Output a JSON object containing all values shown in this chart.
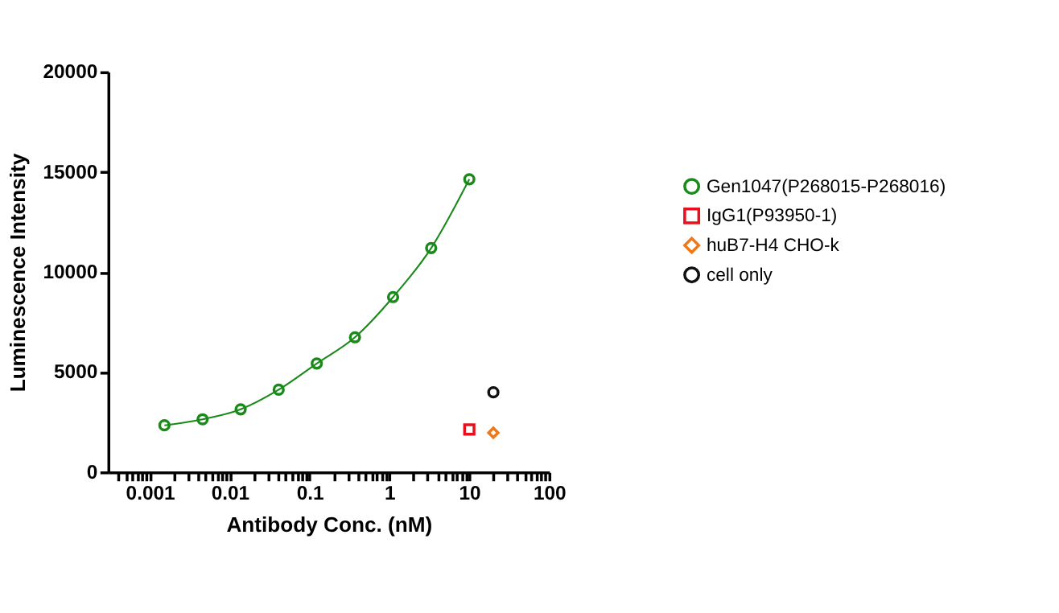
{
  "chart_data": {
    "type": "scatter",
    "xlabel": "Antibody Conc. (nM)",
    "ylabel": "Luminescence Intensity",
    "log": "x",
    "xlim": [
      0.0003,
      100
    ],
    "ylim": [
      0,
      20000
    ],
    "xticks": [
      {
        "value": 0.0004,
        "label": null
      },
      {
        "value": 0.0005,
        "label": null
      },
      {
        "value": 0.0006,
        "label": null
      },
      {
        "value": 0.0007,
        "label": null
      },
      {
        "value": 0.0008,
        "label": null
      },
      {
        "value": 0.0009,
        "label": null
      },
      0.001,
      {
        "value": 0.002,
        "label": null
      },
      {
        "value": 0.003,
        "label": null
      },
      {
        "value": 0.004,
        "label": null
      },
      {
        "value": 0.005,
        "label": null
      },
      {
        "value": 0.006,
        "label": null
      },
      {
        "value": 0.007,
        "label": null
      },
      {
        "value": 0.008,
        "label": null
      },
      {
        "value": 0.009,
        "label": null
      },
      0.01,
      {
        "value": 0.02,
        "label": null
      },
      {
        "value": 0.03,
        "label": null
      },
      {
        "value": 0.04,
        "label": null
      },
      {
        "value": 0.05,
        "label": null
      },
      {
        "value": 0.06,
        "label": null
      },
      {
        "value": 0.07,
        "label": null
      },
      {
        "value": 0.08,
        "label": null
      },
      {
        "value": 0.09,
        "label": null
      },
      0.1,
      {
        "value": 0.2,
        "label": null
      },
      {
        "value": 0.3,
        "label": null
      },
      {
        "value": 0.4,
        "label": null
      },
      {
        "value": 0.5,
        "label": null
      },
      {
        "value": 0.6,
        "label": null
      },
      {
        "value": 0.7,
        "label": null
      },
      {
        "value": 0.8,
        "label": null
      },
      {
        "value": 0.9,
        "label": null
      },
      1,
      {
        "value": 2,
        "label": null
      },
      {
        "value": 3,
        "label": null
      },
      {
        "value": 4,
        "label": null
      },
      {
        "value": 5,
        "label": null
      },
      {
        "value": 6,
        "label": null
      },
      {
        "value": 7,
        "label": null
      },
      {
        "value": 8,
        "label": null
      },
      {
        "value": 9,
        "label": null
      },
      10,
      {
        "value": 20,
        "label": null
      },
      {
        "value": 30,
        "label": null
      },
      {
        "value": 40,
        "label": null
      },
      {
        "value": 50,
        "label": null
      },
      {
        "value": 60,
        "label": null
      },
      {
        "value": 70,
        "label": null
      },
      {
        "value": 80,
        "label": null
      },
      {
        "value": 90,
        "label": null
      },
      100
    ],
    "yticks": [
      0,
      5000,
      10000,
      15000,
      20000
    ],
    "grid": false,
    "legend": "right",
    "series": [
      {
        "name": "Gen1047(P268015-P268016)",
        "type": "line",
        "line_style": "solid",
        "marker": "circle",
        "color": "#1a8a1a",
        "x": [
          0.00152,
          0.00457,
          0.0137,
          0.041,
          0.123,
          0.37,
          1.11,
          3.33,
          10
        ],
        "values": [
          2340,
          2640,
          3140,
          4120,
          5430,
          6740,
          8750,
          11200,
          14640
        ]
      },
      {
        "name": "IgG1(P93950-1)",
        "marker": "square",
        "color": "#e8101c",
        "x": [
          10
        ],
        "values": [
          2130
        ]
      },
      {
        "name": "huB7-H4 CHO-k",
        "marker": "diamond",
        "color": "#f07818",
        "x": [
          20
        ],
        "values": [
          1970
        ]
      },
      {
        "name": "cell only",
        "marker": "circle",
        "color": "#111111",
        "x": [
          20
        ],
        "values": [
          3990
        ]
      }
    ]
  }
}
